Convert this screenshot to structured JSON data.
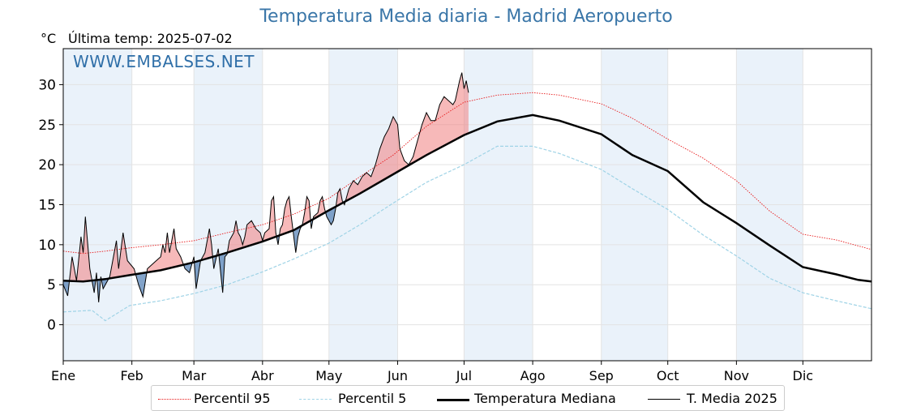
{
  "chart_data": {
    "type": "line",
    "title": "Temperatura Media diaria - Madrid Aeropuerto",
    "unit": "°C",
    "last_temp_label": "Última temp: 2025-07-02",
    "watermark": "WWW.EMBALSES.NET",
    "x_months": [
      "Ene",
      "Feb",
      "Mar",
      "Abr",
      "May",
      "Jun",
      "Jul",
      "Ago",
      "Sep",
      "Oct",
      "Nov",
      "Dic"
    ],
    "month_start_days": [
      1,
      32,
      60,
      91,
      121,
      152,
      182,
      213,
      244,
      274,
      305,
      335
    ],
    "ylim": [
      -4.5,
      34.5
    ],
    "yticks": [
      0,
      5,
      10,
      15,
      20,
      25,
      30
    ],
    "grid": true,
    "colors": {
      "p95": "#e8191a",
      "p5": "#9fd3e6",
      "median": "#000000",
      "current": "#000000",
      "above": "#f08080",
      "below": "#5a86b8",
      "band": "#eaf2fa"
    },
    "series": [
      {
        "name": "Percentil 95",
        "style": "dotted-red",
        "points": [
          [
            1,
            9.2
          ],
          [
            10,
            8.9
          ],
          [
            20,
            9.2
          ],
          [
            31,
            9.6
          ],
          [
            45,
            10.0
          ],
          [
            60,
            10.5
          ],
          [
            75,
            11.5
          ],
          [
            91,
            12.5
          ],
          [
            105,
            13.8
          ],
          [
            121,
            15.8
          ],
          [
            135,
            18.5
          ],
          [
            150,
            21.2
          ],
          [
            165,
            24.8
          ],
          [
            182,
            27.8
          ],
          [
            197,
            28.7
          ],
          [
            213,
            29.0
          ],
          [
            225,
            28.7
          ],
          [
            244,
            27.6
          ],
          [
            258,
            25.8
          ],
          [
            274,
            23.2
          ],
          [
            290,
            20.8
          ],
          [
            305,
            18.0
          ],
          [
            320,
            14.2
          ],
          [
            335,
            11.3
          ],
          [
            350,
            10.6
          ],
          [
            366,
            9.4
          ]
        ]
      },
      {
        "name": "Percentil 5",
        "style": "dashed-lightblue",
        "points": [
          [
            1,
            1.6
          ],
          [
            14,
            1.8
          ],
          [
            20,
            0.5
          ],
          [
            31,
            2.4
          ],
          [
            45,
            3.0
          ],
          [
            60,
            3.9
          ],
          [
            75,
            5.0
          ],
          [
            91,
            6.6
          ],
          [
            105,
            8.2
          ],
          [
            121,
            10.2
          ],
          [
            135,
            12.5
          ],
          [
            150,
            15.2
          ],
          [
            165,
            17.8
          ],
          [
            182,
            20.0
          ],
          [
            197,
            22.3
          ],
          [
            213,
            22.3
          ],
          [
            225,
            21.4
          ],
          [
            244,
            19.4
          ],
          [
            258,
            17.0
          ],
          [
            274,
            14.4
          ],
          [
            290,
            11.2
          ],
          [
            305,
            8.6
          ],
          [
            320,
            5.8
          ],
          [
            335,
            4.0
          ],
          [
            350,
            3.0
          ],
          [
            366,
            2.0
          ]
        ]
      },
      {
        "name": "Temperatura Mediana",
        "style": "thick-black",
        "points": [
          [
            1,
            5.5
          ],
          [
            10,
            5.4
          ],
          [
            20,
            5.7
          ],
          [
            31,
            6.2
          ],
          [
            45,
            6.8
          ],
          [
            60,
            7.8
          ],
          [
            75,
            9.0
          ],
          [
            91,
            10.4
          ],
          [
            105,
            11.8
          ],
          [
            121,
            14.3
          ],
          [
            135,
            16.4
          ],
          [
            150,
            18.8
          ],
          [
            165,
            21.2
          ],
          [
            182,
            23.7
          ],
          [
            197,
            25.4
          ],
          [
            213,
            26.2
          ],
          [
            225,
            25.5
          ],
          [
            244,
            23.8
          ],
          [
            258,
            21.2
          ],
          [
            274,
            19.2
          ],
          [
            290,
            15.3
          ],
          [
            305,
            12.7
          ],
          [
            320,
            9.9
          ],
          [
            335,
            7.2
          ],
          [
            350,
            6.3
          ],
          [
            360,
            5.6
          ],
          [
            366,
            5.4
          ]
        ]
      },
      {
        "name": "T. Media 2025",
        "style": "thin-black",
        "points": [
          [
            1,
            5.0
          ],
          [
            3,
            3.6
          ],
          [
            5,
            8.5
          ],
          [
            7,
            5.5
          ],
          [
            9,
            11.0
          ],
          [
            10,
            9.0
          ],
          [
            11,
            13.5
          ],
          [
            13,
            7.0
          ],
          [
            15,
            4.0
          ],
          [
            16,
            6.5
          ],
          [
            17,
            2.8
          ],
          [
            18,
            6.0
          ],
          [
            19,
            4.5
          ],
          [
            22,
            6.0
          ],
          [
            25,
            10.5
          ],
          [
            26,
            7.0
          ],
          [
            28,
            11.5
          ],
          [
            30,
            8.0
          ],
          [
            33,
            7.0
          ],
          [
            35,
            5.0
          ],
          [
            37,
            3.5
          ],
          [
            39,
            7.0
          ],
          [
            41,
            7.5
          ],
          [
            43,
            8.0
          ],
          [
            45,
            8.5
          ],
          [
            46,
            10.0
          ],
          [
            47,
            9.0
          ],
          [
            48,
            11.5
          ],
          [
            49,
            9.0
          ],
          [
            51,
            12.0
          ],
          [
            52,
            9.5
          ],
          [
            54,
            8.5
          ],
          [
            56,
            7.0
          ],
          [
            58,
            6.5
          ],
          [
            60,
            8.5
          ],
          [
            61,
            4.5
          ],
          [
            63,
            8.0
          ],
          [
            65,
            9.0
          ],
          [
            67,
            12.0
          ],
          [
            68,
            10.0
          ],
          [
            69,
            7.0
          ],
          [
            71,
            9.5
          ],
          [
            73,
            4.0
          ],
          [
            74,
            8.5
          ],
          [
            75,
            8.8
          ],
          [
            76,
            10.5
          ],
          [
            77,
            11.0
          ],
          [
            78,
            11.5
          ],
          [
            79,
            13.0
          ],
          [
            80,
            11.5
          ],
          [
            81,
            11.0
          ],
          [
            82,
            10.0
          ],
          [
            83,
            11.0
          ],
          [
            84,
            12.5
          ],
          [
            86,
            13.0
          ],
          [
            88,
            12.0
          ],
          [
            90,
            11.5
          ],
          [
            91,
            10.5
          ],
          [
            92,
            11.5
          ],
          [
            94,
            12.0
          ],
          [
            95,
            15.5
          ],
          [
            96,
            16.0
          ],
          [
            97,
            11.5
          ],
          [
            98,
            10.0
          ],
          [
            99,
            12.0
          ],
          [
            100,
            12.5
          ],
          [
            101,
            14.5
          ],
          [
            102,
            15.5
          ],
          [
            103,
            16.0
          ],
          [
            104,
            13.5
          ],
          [
            106,
            9.0
          ],
          [
            107,
            11.0
          ],
          [
            108,
            12.0
          ],
          [
            109,
            12.5
          ],
          [
            110,
            14.0
          ],
          [
            111,
            16.0
          ],
          [
            112,
            15.5
          ],
          [
            113,
            12.0
          ],
          [
            114,
            13.5
          ],
          [
            116,
            14.0
          ],
          [
            117,
            15.5
          ],
          [
            118,
            16.0
          ],
          [
            119,
            14.5
          ],
          [
            120,
            13.5
          ],
          [
            122,
            12.5
          ],
          [
            123,
            13.0
          ],
          [
            124,
            14.5
          ],
          [
            125,
            16.5
          ],
          [
            126,
            17.0
          ],
          [
            127,
            15.5
          ],
          [
            128,
            15.0
          ],
          [
            130,
            17.0
          ],
          [
            132,
            18.0
          ],
          [
            134,
            17.5
          ],
          [
            136,
            18.5
          ],
          [
            138,
            19.0
          ],
          [
            140,
            18.5
          ],
          [
            142,
            20.0
          ],
          [
            144,
            22.0
          ],
          [
            146,
            23.5
          ],
          [
            148,
            24.5
          ],
          [
            150,
            26.0
          ],
          [
            152,
            25.0
          ],
          [
            153,
            22.0
          ],
          [
            155,
            20.5
          ],
          [
            157,
            20.0
          ],
          [
            159,
            21.0
          ],
          [
            161,
            23.0
          ],
          [
            163,
            25.0
          ],
          [
            165,
            26.5
          ],
          [
            167,
            25.5
          ],
          [
            169,
            25.5
          ],
          [
            171,
            27.5
          ],
          [
            173,
            28.5
          ],
          [
            175,
            28.0
          ],
          [
            177,
            27.5
          ],
          [
            178,
            28.0
          ],
          [
            180,
            30.5
          ],
          [
            181,
            31.5
          ],
          [
            182,
            29.5
          ],
          [
            183,
            30.5
          ],
          [
            184,
            29.0
          ]
        ]
      }
    ]
  },
  "legend": {
    "items": [
      "Percentil 95",
      "Percentil 5",
      "Temperatura Mediana",
      "T. Media 2025"
    ]
  }
}
